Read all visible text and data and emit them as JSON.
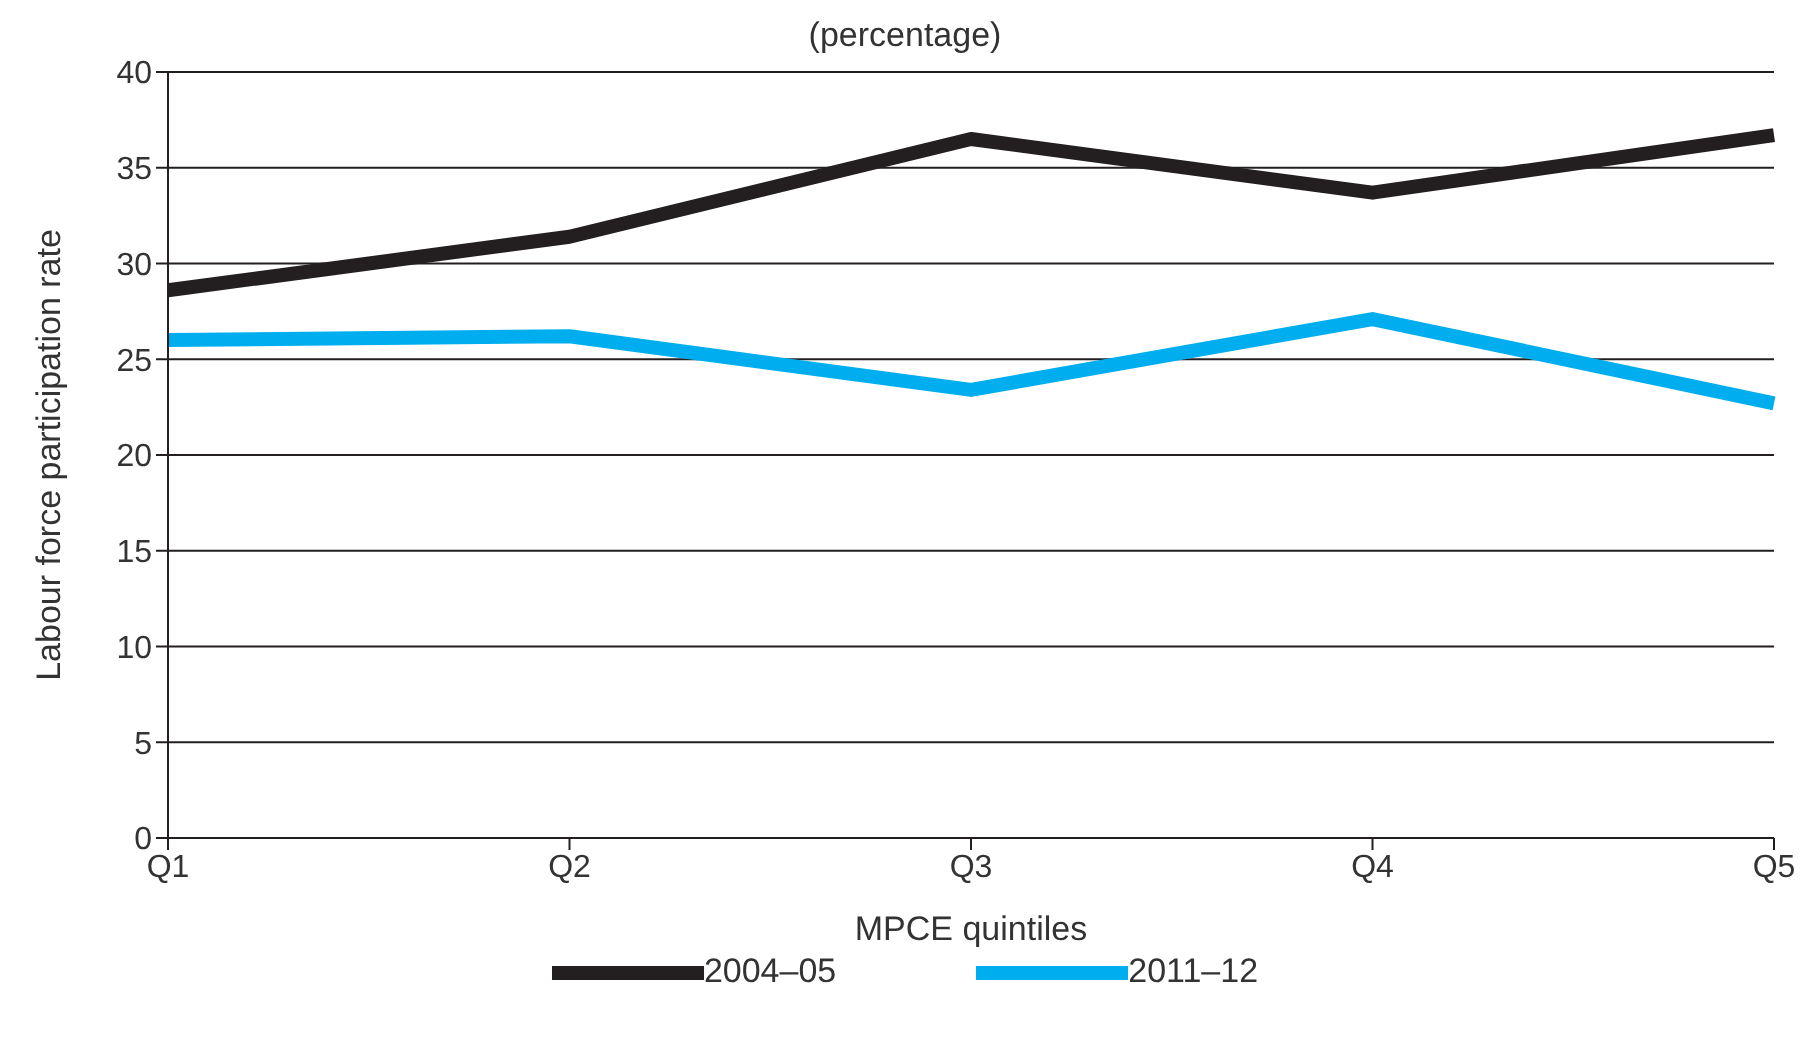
{
  "chart_data": {
    "type": "line",
    "title": "(percentage)",
    "xlabel": "MPCE quintiles",
    "ylabel": "Labour force participation rate",
    "categories": [
      "Q1",
      "Q2",
      "Q3",
      "Q4",
      "Q5"
    ],
    "series": [
      {
        "name": "2004–05",
        "color": "#231f20",
        "values": [
          28.6,
          31.4,
          36.5,
          33.7,
          36.7
        ]
      },
      {
        "name": "2011–12",
        "color": "#00aeef",
        "values": [
          26.0,
          26.2,
          23.4,
          27.1,
          22.7
        ]
      }
    ],
    "ylim": [
      0,
      40
    ],
    "yticks": [
      0,
      5,
      10,
      15,
      20,
      25,
      30,
      35,
      40
    ],
    "grid": "y",
    "legend": "bottom",
    "marker": "none",
    "line_style": "solid"
  }
}
